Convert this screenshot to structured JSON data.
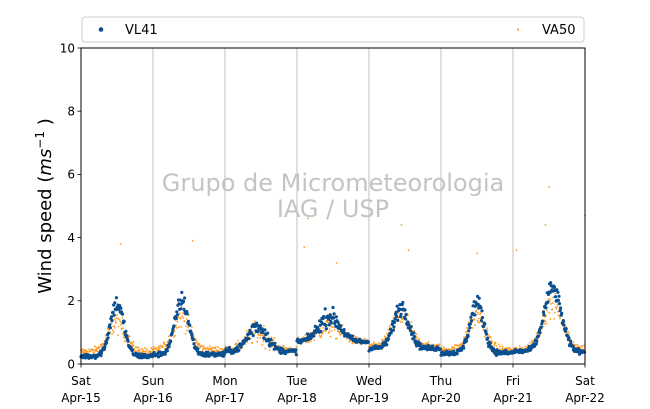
{
  "chart_data": {
    "type": "scatter",
    "ylabel_prefix": "Wind speed (",
    "ylabel_unit_base": "ms",
    "ylabel_unit_exp": "−1",
    "ylabel_suffix": " )",
    "ylim": [
      0,
      10
    ],
    "yticks": [
      0,
      2,
      4,
      6,
      8,
      10
    ],
    "x_range": [
      "2023-04-15",
      "2023-04-22"
    ],
    "xticks": [
      {
        "day": "Sat",
        "date": "Apr-15"
      },
      {
        "day": "Sun",
        "date": "Apr-16"
      },
      {
        "day": "Mon",
        "date": "Apr-17"
      },
      {
        "day": "Tue",
        "date": "Apr-18"
      },
      {
        "day": "Wed",
        "date": "Apr-19"
      },
      {
        "day": "Thu",
        "date": "Apr-20"
      },
      {
        "day": "Fri",
        "date": "Apr-21"
      },
      {
        "day": "Sat",
        "date": "Apr-22"
      }
    ],
    "grid": "vertical",
    "legend_placement": "top",
    "watermark_line1": "Grupo de Micrometeorologia",
    "watermark_line2": "IAG / USP",
    "series": [
      {
        "name": "VL41",
        "color": "#0a4f8f",
        "marker": "dot",
        "daily_profile": [
          {
            "day": 0,
            "peak_hour": 0.5,
            "peak": 1.9,
            "base": 0.25,
            "width": 0.16
          },
          {
            "day": 1,
            "peak_hour": 0.4,
            "peak": 2.0,
            "base": 0.3,
            "width": 0.16
          },
          {
            "day": 2,
            "peak_hour": 0.45,
            "peak": 1.2,
            "base": 0.4,
            "width": 0.22
          },
          {
            "day": 3,
            "peak_hour": 0.45,
            "peak": 1.5,
            "base": 0.7,
            "width": 0.25
          },
          {
            "day": 4,
            "peak_hour": 0.45,
            "peak": 1.8,
            "base": 0.5,
            "width": 0.18
          },
          {
            "day": 5,
            "peak_hour": 0.5,
            "peak": 1.9,
            "base": 0.35,
            "width": 0.16
          },
          {
            "day": 6,
            "peak_hour": 0.55,
            "peak": 2.4,
            "base": 0.4,
            "width": 0.2
          }
        ]
      },
      {
        "name": "VA50",
        "color": "#ff9a1f",
        "marker": "point",
        "daily_profile": [
          {
            "day": 0,
            "peak_hour": 0.5,
            "peak": 1.3,
            "base": 0.4,
            "width": 0.2
          },
          {
            "day": 1,
            "peak_hour": 0.4,
            "peak": 1.5,
            "base": 0.45,
            "width": 0.2
          },
          {
            "day": 2,
            "peak_hour": 0.45,
            "peak": 1.0,
            "base": 0.45,
            "width": 0.25
          },
          {
            "day": 3,
            "peak_hour": 0.45,
            "peak": 1.2,
            "base": 0.7,
            "width": 0.28
          },
          {
            "day": 4,
            "peak_hour": 0.45,
            "peak": 1.5,
            "base": 0.55,
            "width": 0.22
          },
          {
            "day": 5,
            "peak_hour": 0.5,
            "peak": 1.5,
            "base": 0.45,
            "width": 0.2
          },
          {
            "day": 6,
            "peak_hour": 0.55,
            "peak": 1.9,
            "base": 0.45,
            "width": 0.24
          }
        ],
        "outliers": [
          {
            "x": 1.55,
            "y": 3.9
          },
          {
            "x": 0.55,
            "y": 3.8
          },
          {
            "x": 3.55,
            "y": 3.2
          },
          {
            "x": 4.45,
            "y": 4.4
          },
          {
            "x": 4.55,
            "y": 3.6
          },
          {
            "x": 5.5,
            "y": 3.5
          },
          {
            "x": 6.45,
            "y": 4.4
          },
          {
            "x": 6.5,
            "y": 5.6
          },
          {
            "x": 7.0,
            "y": 4.7
          },
          {
            "x": 3.1,
            "y": 3.7
          },
          {
            "x": 3.15,
            "y": 4.6
          },
          {
            "x": 6.05,
            "y": 3.6
          }
        ]
      }
    ]
  }
}
